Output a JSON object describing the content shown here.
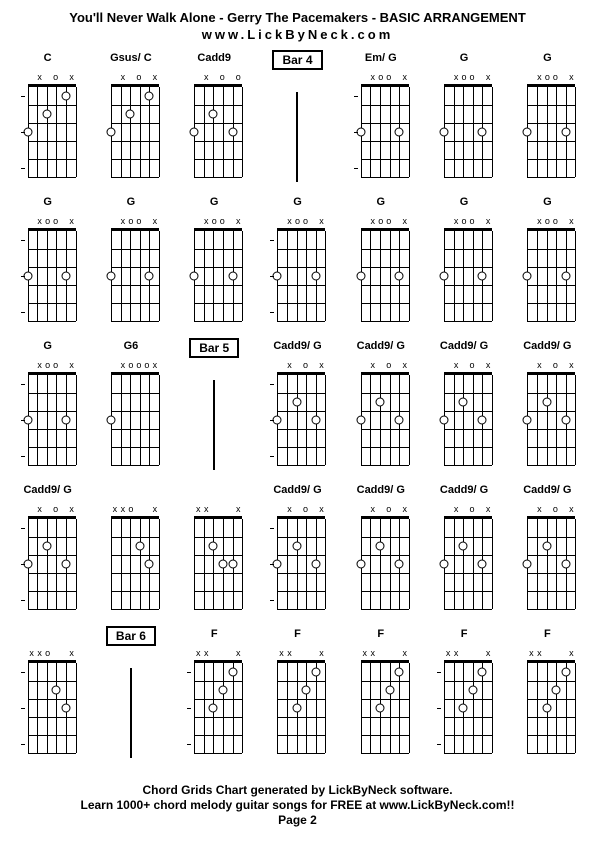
{
  "title": "You'll Never Walk Alone - Gerry The Pacemakers  - BASIC ARRANGEMENT",
  "url": "www.LickByNeck.com",
  "footer": {
    "line1": "Chord Grids Chart generated by LickByNeck software.",
    "line2": "Learn 1000+ chord melody guitar songs for FREE at www.LickByNeck.com!!",
    "line3": "Page 2"
  },
  "style": {
    "background": "#ffffff",
    "text_color": "#000000",
    "grid_cols": 7,
    "grid_rows": 5,
    "diagram_width": 60,
    "diagram_height": 110,
    "num_frets": 5,
    "num_strings": 6,
    "string_spacing": 9.6,
    "fret_spacing": 18
  },
  "rows": [
    [
      {
        "type": "chord",
        "label": "C",
        "marks": [
          "",
          "x",
          "",
          "o",
          "",
          "x"
        ],
        "dots": [
          [
            0,
            3
          ],
          [
            2,
            2
          ],
          [
            4,
            1
          ]
        ],
        "ticks": [
          1,
          3,
          5
        ]
      },
      {
        "type": "chord",
        "label": "Gsus/ C",
        "marks": [
          "",
          "x",
          "",
          "o",
          "",
          "x"
        ],
        "dots": [
          [
            0,
            3
          ],
          [
            2,
            2
          ],
          [
            4,
            1
          ]
        ],
        "ticks": []
      },
      {
        "type": "chord",
        "label": "Cadd9",
        "marks": [
          "",
          "x",
          "",
          "o",
          "",
          "o"
        ],
        "dots": [
          [
            0,
            3
          ],
          [
            2,
            2
          ],
          [
            4,
            3
          ]
        ],
        "ticks": []
      },
      {
        "type": "bar",
        "label": "Bar 4"
      },
      {
        "type": "chord",
        "label": "Em/ G",
        "marks": [
          "",
          "x",
          "o",
          "o",
          "",
          "x"
        ],
        "dots": [
          [
            0,
            3
          ],
          [
            4,
            3
          ]
        ],
        "ticks": [
          1,
          3,
          5
        ]
      },
      {
        "type": "chord",
        "label": "G",
        "marks": [
          "",
          "x",
          "o",
          "o",
          "",
          "x"
        ],
        "dots": [
          [
            0,
            3
          ],
          [
            4,
            3
          ]
        ],
        "ticks": []
      },
      {
        "type": "chord",
        "label": "G",
        "marks": [
          "",
          "x",
          "o",
          "o",
          "",
          "x"
        ],
        "dots": [
          [
            0,
            3
          ],
          [
            4,
            3
          ]
        ],
        "ticks": []
      }
    ],
    [
      {
        "type": "chord",
        "label": "G",
        "marks": [
          "",
          "x",
          "o",
          "o",
          "",
          "x"
        ],
        "dots": [
          [
            0,
            3
          ],
          [
            4,
            3
          ]
        ],
        "ticks": [
          1,
          3,
          5
        ]
      },
      {
        "type": "chord",
        "label": "G",
        "marks": [
          "",
          "x",
          "o",
          "o",
          "",
          "x"
        ],
        "dots": [
          [
            0,
            3
          ],
          [
            4,
            3
          ]
        ],
        "ticks": []
      },
      {
        "type": "chord",
        "label": "G",
        "marks": [
          "",
          "x",
          "o",
          "o",
          "",
          "x"
        ],
        "dots": [
          [
            0,
            3
          ],
          [
            4,
            3
          ]
        ],
        "ticks": []
      },
      {
        "type": "chord",
        "label": "G",
        "marks": [
          "",
          "x",
          "o",
          "o",
          "",
          "x"
        ],
        "dots": [
          [
            0,
            3
          ],
          [
            4,
            3
          ]
        ],
        "ticks": [
          1,
          3,
          5
        ]
      },
      {
        "type": "chord",
        "label": "G",
        "marks": [
          "",
          "x",
          "o",
          "o",
          "",
          "x"
        ],
        "dots": [
          [
            0,
            3
          ],
          [
            4,
            3
          ]
        ],
        "ticks": []
      },
      {
        "type": "chord",
        "label": "G",
        "marks": [
          "",
          "x",
          "o",
          "o",
          "",
          "x"
        ],
        "dots": [
          [
            0,
            3
          ],
          [
            4,
            3
          ]
        ],
        "ticks": []
      },
      {
        "type": "chord",
        "label": "G",
        "marks": [
          "",
          "x",
          "o",
          "o",
          "",
          "x"
        ],
        "dots": [
          [
            0,
            3
          ],
          [
            4,
            3
          ]
        ],
        "ticks": []
      }
    ],
    [
      {
        "type": "chord",
        "label": "G",
        "marks": [
          "",
          "x",
          "o",
          "o",
          "",
          "x"
        ],
        "dots": [
          [
            0,
            3
          ],
          [
            4,
            3
          ]
        ],
        "ticks": [
          1,
          3,
          5
        ]
      },
      {
        "type": "chord",
        "label": "G6",
        "marks": [
          "",
          "x",
          "o",
          "o",
          "o",
          "x"
        ],
        "dots": [
          [
            0,
            3
          ]
        ],
        "ticks": []
      },
      {
        "type": "bar",
        "label": "Bar 5"
      },
      {
        "type": "chord",
        "label": "Cadd9/ G",
        "marks": [
          "",
          "x",
          "",
          "o",
          "",
          "x"
        ],
        "dots": [
          [
            0,
            3
          ],
          [
            2,
            2
          ],
          [
            4,
            3
          ]
        ],
        "ticks": [
          1,
          3,
          5
        ]
      },
      {
        "type": "chord",
        "label": "Cadd9/ G",
        "marks": [
          "",
          "x",
          "",
          "o",
          "",
          "x"
        ],
        "dots": [
          [
            0,
            3
          ],
          [
            2,
            2
          ],
          [
            4,
            3
          ]
        ],
        "ticks": []
      },
      {
        "type": "chord",
        "label": "Cadd9/ G",
        "marks": [
          "",
          "x",
          "",
          "o",
          "",
          "x"
        ],
        "dots": [
          [
            0,
            3
          ],
          [
            2,
            2
          ],
          [
            4,
            3
          ]
        ],
        "ticks": []
      },
      {
        "type": "chord",
        "label": "Cadd9/ G",
        "marks": [
          "",
          "x",
          "",
          "o",
          "",
          "x"
        ],
        "dots": [
          [
            0,
            3
          ],
          [
            2,
            2
          ],
          [
            4,
            3
          ]
        ],
        "ticks": []
      }
    ],
    [
      {
        "type": "chord",
        "label": "Cadd9/ G",
        "marks": [
          "",
          "x",
          "",
          "o",
          "",
          "x"
        ],
        "dots": [
          [
            0,
            3
          ],
          [
            2,
            2
          ],
          [
            4,
            3
          ]
        ],
        "ticks": [
          1,
          3,
          5
        ]
      },
      {
        "type": "chord",
        "label": "",
        "marks": [
          "x",
          "x",
          "o",
          "",
          "",
          "x"
        ],
        "dots": [
          [
            3,
            2
          ],
          [
            4,
            3
          ]
        ],
        "ticks": []
      },
      {
        "type": "chord",
        "label": "",
        "marks": [
          "x",
          "x",
          "",
          "",
          "",
          "x"
        ],
        "dots": [
          [
            2,
            2
          ],
          [
            3,
            3
          ],
          [
            4,
            3
          ]
        ],
        "ticks": []
      },
      {
        "type": "chord",
        "label": "Cadd9/ G",
        "marks": [
          "",
          "x",
          "",
          "o",
          "",
          "x"
        ],
        "dots": [
          [
            0,
            3
          ],
          [
            2,
            2
          ],
          [
            4,
            3
          ]
        ],
        "ticks": [
          1,
          3,
          5
        ]
      },
      {
        "type": "chord",
        "label": "Cadd9/ G",
        "marks": [
          "",
          "x",
          "",
          "o",
          "",
          "x"
        ],
        "dots": [
          [
            0,
            3
          ],
          [
            2,
            2
          ],
          [
            4,
            3
          ]
        ],
        "ticks": []
      },
      {
        "type": "chord",
        "label": "Cadd9/ G",
        "marks": [
          "",
          "x",
          "",
          "o",
          "",
          "x"
        ],
        "dots": [
          [
            0,
            3
          ],
          [
            2,
            2
          ],
          [
            4,
            3
          ]
        ],
        "ticks": []
      },
      {
        "type": "chord",
        "label": "Cadd9/ G",
        "marks": [
          "",
          "x",
          "",
          "o",
          "",
          "x"
        ],
        "dots": [
          [
            0,
            3
          ],
          [
            2,
            2
          ],
          [
            4,
            3
          ]
        ],
        "ticks": []
      }
    ],
    [
      {
        "type": "chord",
        "label": "",
        "marks": [
          "x",
          "x",
          "o",
          "",
          "",
          "x"
        ],
        "dots": [
          [
            3,
            2
          ],
          [
            4,
            3
          ]
        ],
        "ticks": [
          1,
          3,
          5
        ]
      },
      {
        "type": "bar",
        "label": "Bar 6"
      },
      {
        "type": "chord",
        "label": "F",
        "marks": [
          "x",
          "x",
          "",
          "",
          "",
          "x"
        ],
        "dots": [
          [
            2,
            3
          ],
          [
            3,
            2
          ],
          [
            4,
            1
          ]
        ],
        "ticks": [
          1,
          3,
          5
        ]
      },
      {
        "type": "chord",
        "label": "F",
        "marks": [
          "x",
          "x",
          "",
          "",
          "",
          "x"
        ],
        "dots": [
          [
            2,
            3
          ],
          [
            3,
            2
          ],
          [
            4,
            1
          ]
        ],
        "ticks": []
      },
      {
        "type": "chord",
        "label": "F",
        "marks": [
          "x",
          "x",
          "",
          "",
          "",
          "x"
        ],
        "dots": [
          [
            2,
            3
          ],
          [
            3,
            2
          ],
          [
            4,
            1
          ]
        ],
        "ticks": []
      },
      {
        "type": "chord",
        "label": "F",
        "marks": [
          "x",
          "x",
          "",
          "",
          "",
          "x"
        ],
        "dots": [
          [
            2,
            3
          ],
          [
            3,
            2
          ],
          [
            4,
            1
          ]
        ],
        "ticks": [
          1,
          3,
          5
        ]
      },
      {
        "type": "chord",
        "label": "F",
        "marks": [
          "x",
          "x",
          "",
          "",
          "",
          "x"
        ],
        "dots": [
          [
            2,
            3
          ],
          [
            3,
            2
          ],
          [
            4,
            1
          ]
        ],
        "ticks": []
      }
    ]
  ]
}
